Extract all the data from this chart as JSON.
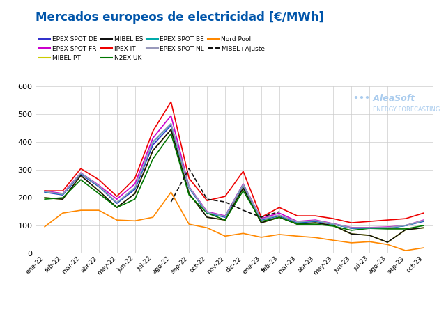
{
  "title": "Mercados europeos de electricidad [€/MWh]",
  "title_color": "#0055aa",
  "months": [
    "ene-22",
    "feb-22",
    "mar-22",
    "abr-22",
    "may-22",
    "jun-22",
    "jul-22",
    "ago-22",
    "sep-22",
    "oct-22",
    "nov-22",
    "dic-22",
    "ene-23",
    "feb-23",
    "mar-23",
    "abr-23",
    "may-23",
    "jun-23",
    "jul-23",
    "ago-23",
    "sep-23",
    "oct-23"
  ],
  "series": {
    "EPEX SPOT DE": {
      "color": "#3333cc",
      "values": [
        220,
        210,
        285,
        240,
        180,
        230,
        390,
        460,
        235,
        145,
        130,
        245,
        120,
        135,
        110,
        115,
        105,
        90,
        90,
        90,
        100,
        115
      ]
    },
    "EPEX SPOT FR": {
      "color": "#cc00cc",
      "values": [
        225,
        215,
        290,
        245,
        195,
        250,
        415,
        495,
        240,
        150,
        135,
        250,
        125,
        145,
        115,
        120,
        107,
        93,
        93,
        95,
        100,
        120
      ]
    },
    "MIBEL PT": {
      "color": "#cccc00",
      "values": [
        200,
        195,
        280,
        225,
        165,
        215,
        370,
        445,
        215,
        130,
        120,
        235,
        110,
        130,
        105,
        110,
        100,
        70,
        65,
        40,
        85,
        92
      ]
    },
    "MIBEL ES": {
      "color": "#111111",
      "values": [
        200,
        195,
        280,
        225,
        165,
        215,
        370,
        445,
        215,
        130,
        120,
        235,
        110,
        130,
        105,
        110,
        100,
        70,
        65,
        40,
        85,
        92
      ]
    },
    "IPEX IT": {
      "color": "#ee0000",
      "values": [
        225,
        225,
        305,
        265,
        205,
        270,
        440,
        545,
        270,
        190,
        205,
        295,
        130,
        165,
        135,
        135,
        125,
        110,
        115,
        120,
        125,
        145
      ]
    },
    "N2EX UK": {
      "color": "#007700",
      "values": [
        195,
        200,
        265,
        215,
        165,
        195,
        340,
        430,
        210,
        145,
        120,
        225,
        115,
        130,
        105,
        105,
        98,
        83,
        90,
        88,
        88,
        100
      ]
    },
    "EPEX SPOT BE": {
      "color": "#00aaaa",
      "values": [
        222,
        212,
        288,
        242,
        182,
        235,
        400,
        465,
        237,
        147,
        132,
        247,
        122,
        137,
        112,
        117,
        105,
        91,
        91,
        92,
        100,
        117
      ]
    },
    "EPEX SPOT NL": {
      "color": "#9999bb",
      "values": [
        223,
        213,
        289,
        243,
        183,
        237,
        402,
        467,
        238,
        148,
        133,
        248,
        123,
        138,
        113,
        118,
        106,
        92,
        92,
        93,
        101,
        118
      ]
    },
    "Nord Pool": {
      "color": "#ff8800",
      "values": [
        96,
        145,
        155,
        155,
        120,
        117,
        130,
        220,
        105,
        92,
        62,
        72,
        58,
        68,
        62,
        57,
        47,
        38,
        42,
        32,
        10,
        20
      ]
    },
    "MIBEL+Ajuste": {
      "color": "#111111",
      "linestyle": "dashed",
      "values": [
        null,
        null,
        null,
        null,
        null,
        null,
        null,
        185,
        305,
        195,
        185,
        155,
        130,
        150,
        null,
        null,
        null,
        null,
        null,
        null,
        null,
        null
      ]
    }
  },
  "ylim": [
    0,
    600
  ],
  "yticks": [
    0,
    100,
    200,
    300,
    400,
    500,
    600
  ],
  "background_color": "#ffffff",
  "grid_color": "#cccccc",
  "watermark_main": "AleaSoft",
  "watermark_sub": "ENERGY FORECASTING",
  "watermark_color": "#aaccee"
}
